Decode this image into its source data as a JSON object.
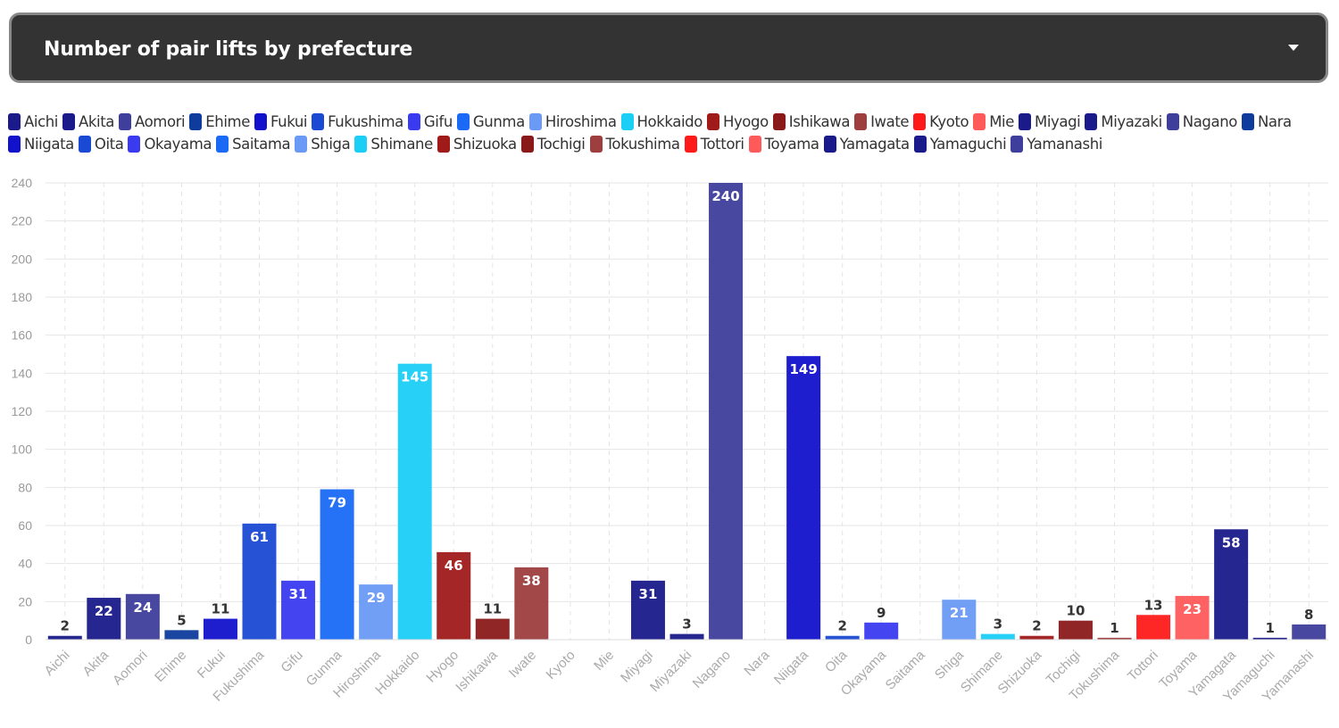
{
  "header": {
    "title": "Number of pair lifts by prefecture",
    "caret_icon": "chevron-down-icon"
  },
  "chart_data": {
    "type": "bar",
    "title": "Number of pair lifts by prefecture",
    "xlabel": "",
    "ylabel": "",
    "ylim": [
      0,
      240
    ],
    "yticks": [
      0,
      20,
      40,
      60,
      80,
      100,
      120,
      140,
      160,
      180,
      200,
      220,
      240
    ],
    "grid": true,
    "legend": "top",
    "categories": [
      "Aichi",
      "Akita",
      "Aomori",
      "Ehime",
      "Fukui",
      "Fukushima",
      "Gifu",
      "Gunma",
      "Hiroshima",
      "Hokkaido",
      "Hyogo",
      "Ishikawa",
      "Iwate",
      "Kyoto",
      "Mie",
      "Miyagi",
      "Miyazaki",
      "Nagano",
      "Nara",
      "Niigata",
      "Oita",
      "Okayama",
      "Saitama",
      "Shiga",
      "Shimane",
      "Shizuoka",
      "Tochigi",
      "Tokushima",
      "Tottori",
      "Toyama",
      "Yamagata",
      "Yamaguchi",
      "Yamanashi"
    ],
    "values": [
      2,
      22,
      24,
      5,
      11,
      61,
      31,
      79,
      29,
      145,
      46,
      11,
      38,
      0,
      0,
      31,
      3,
      240,
      0,
      149,
      2,
      9,
      0,
      21,
      3,
      2,
      10,
      1,
      13,
      23,
      58,
      1,
      8
    ],
    "labels": [
      "2",
      "22",
      "24",
      "5",
      "11",
      "61",
      "31",
      "79",
      "29",
      "145",
      "46",
      "11",
      "38",
      "",
      "",
      "31",
      "3",
      "240",
      "",
      "149",
      "2",
      "9",
      "",
      "21",
      "3",
      "2",
      "10",
      "1",
      "13",
      "23",
      "58",
      "1",
      "8"
    ],
    "colors": [
      "#1a1a8a",
      "#1a1a8a",
      "#3e3e9c",
      "#0e3c9c",
      "#1212cc",
      "#1a4ad4",
      "#3a3af0",
      "#1a6af5",
      "#6a9af5",
      "#1acef5",
      "#a01a1a",
      "#8a1a1a",
      "#9e3e3e",
      "#ff1a1a",
      "#ff5a5a",
      "#1a1a8a",
      "#1a1a8a",
      "#3e3e9c",
      "#0e3c9c",
      "#1212cc",
      "#1a4ad4",
      "#3a3af0",
      "#1a6af5",
      "#6a9af5",
      "#1acef5",
      "#a01a1a",
      "#8a1a1a",
      "#9e3e3e",
      "#ff1a1a",
      "#ff5a5a",
      "#1a1a8a",
      "#1a1a8a",
      "#3e3e9c"
    ]
  }
}
